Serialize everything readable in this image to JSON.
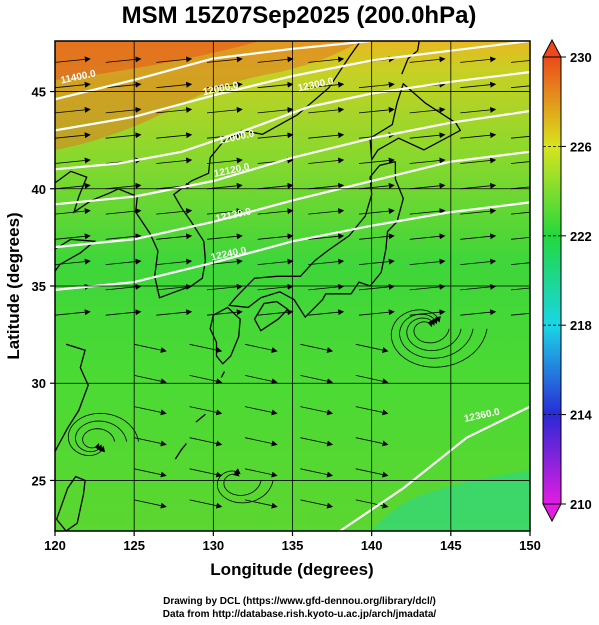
{
  "title": "MSM 15Z07Sep2025 (200.0hPa)",
  "x_axis": {
    "label": "Longitude (degrees)",
    "ticks": [
      "120",
      "125",
      "130",
      "135",
      "140",
      "145",
      "150"
    ],
    "range": [
      120,
      150
    ]
  },
  "y_axis": {
    "label": "Latitude  (degrees)",
    "ticks": [
      "25",
      "30",
      "35",
      "40",
      "45"
    ],
    "range": [
      22.4,
      47.6
    ]
  },
  "colorbar": {
    "ticks": [
      "210",
      "214",
      "218",
      "222",
      "226",
      "230"
    ],
    "range": [
      210,
      230
    ],
    "colors": [
      "#e21ce2",
      "#2a2ad6",
      "#1ad6e6",
      "#22d83c",
      "#d8e41e",
      "#ec4a1a"
    ]
  },
  "contours": [
    {
      "label": "11400.0",
      "lon": 121.5,
      "lat": 45.6
    },
    {
      "label": "12000.0",
      "lon": 130.5,
      "lat": 45.0
    },
    {
      "label": "12300.0",
      "lon": 136.5,
      "lat": 45.2
    },
    {
      "label": "12000.0",
      "lon": 131.5,
      "lat": 42.5
    },
    {
      "label": "12120.0",
      "lon": 131.2,
      "lat": 40.8
    },
    {
      "label": "12120.0",
      "lon": 131.3,
      "lat": 38.5
    },
    {
      "label": "12240.0",
      "lon": 131.0,
      "lat": 36.5
    },
    {
      "label": "12360.0",
      "lon": 147.0,
      "lat": 28.2
    }
  ],
  "credits": {
    "line1": "Drawing by DCL (https://www.gfd-dennou.org/library/dcl/)",
    "line2": "Data from http://database.rish.kyoto-u.ac.jp/arch/jmadata/"
  },
  "icons": [
    "colorbar-up-arrow-icon",
    "colorbar-down-arrow-icon"
  ]
}
